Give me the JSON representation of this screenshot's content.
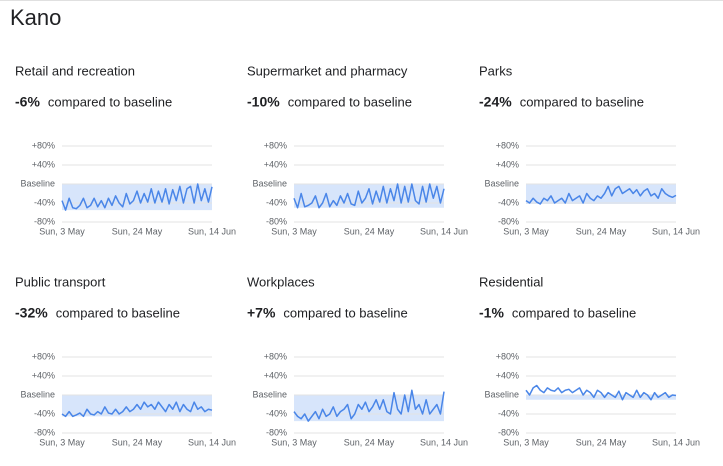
{
  "page_title": "Kano",
  "chart_data": [
    {
      "type": "line",
      "title": "Retail and recreation",
      "summary_value": -6,
      "summary_label": "-6%",
      "summary_text": "compared to baseline",
      "color": "#4a86e8",
      "grid": true,
      "ylim": [
        -80,
        80
      ],
      "yticks": [
        {
          "value": 80,
          "label": "+80%"
        },
        {
          "value": 40,
          "label": "+40%"
        },
        {
          "value": 0,
          "label": "Baseline"
        },
        {
          "value": -40,
          "label": "-40%"
        },
        {
          "value": -80,
          "label": "-80%"
        }
      ],
      "categories": [
        "Sun, 3 May",
        null,
        null,
        null,
        null,
        null,
        null,
        null,
        null,
        null,
        null,
        null,
        null,
        null,
        null,
        null,
        null,
        null,
        null,
        null,
        null,
        "Sun, 24 May",
        null,
        null,
        null,
        null,
        null,
        null,
        null,
        null,
        null,
        null,
        null,
        null,
        null,
        null,
        null,
        null,
        null,
        null,
        null,
        null,
        "Sun, 14 Jun"
      ],
      "values": [
        -35,
        -55,
        -30,
        -50,
        -52,
        -45,
        -30,
        -50,
        -45,
        -30,
        -48,
        -35,
        -50,
        -30,
        -45,
        -25,
        -40,
        -48,
        -20,
        -42,
        -35,
        -15,
        -40,
        -20,
        -38,
        -10,
        -40,
        -15,
        -38,
        -10,
        -42,
        -12,
        -35,
        -5,
        -40,
        -10,
        -5,
        -40,
        0,
        -35,
        -10,
        -38,
        -6
      ]
    },
    {
      "type": "line",
      "title": "Supermarket and pharmacy",
      "summary_value": -10,
      "summary_label": "-10%",
      "summary_text": "compared to baseline",
      "color": "#4a86e8",
      "grid": true,
      "ylim": [
        -80,
        80
      ],
      "yticks": [
        {
          "value": 80,
          "label": "+80%"
        },
        {
          "value": 40,
          "label": "+40%"
        },
        {
          "value": 0,
          "label": "Baseline"
        },
        {
          "value": -40,
          "label": "-40%"
        },
        {
          "value": -80,
          "label": "-80%"
        }
      ],
      "categories": [
        "Sun, 3 May",
        null,
        null,
        null,
        null,
        null,
        null,
        null,
        null,
        null,
        null,
        null,
        null,
        null,
        null,
        null,
        null,
        null,
        null,
        null,
        null,
        "Sun, 24 May",
        null,
        null,
        null,
        null,
        null,
        null,
        null,
        null,
        null,
        null,
        null,
        null,
        null,
        null,
        null,
        null,
        null,
        null,
        null,
        null,
        "Sun, 14 Jun"
      ],
      "values": [
        -30,
        -50,
        -20,
        -48,
        -45,
        -40,
        -25,
        -50,
        -40,
        -20,
        -48,
        -35,
        -45,
        -25,
        -40,
        -20,
        -42,
        -45,
        -15,
        -40,
        -30,
        -10,
        -42,
        -15,
        -38,
        -5,
        -40,
        -10,
        -35,
        0,
        -40,
        -5,
        -38,
        0,
        -35,
        -42,
        -5,
        -38,
        0,
        -30,
        -5,
        -40,
        -10
      ]
    },
    {
      "type": "line",
      "title": "Parks",
      "summary_value": -24,
      "summary_label": "-24%",
      "summary_text": "compared to baseline",
      "color": "#4a86e8",
      "grid": true,
      "ylim": [
        -80,
        80
      ],
      "yticks": [
        {
          "value": 80,
          "label": "+80%"
        },
        {
          "value": 40,
          "label": "+40%"
        },
        {
          "value": 0,
          "label": "Baseline"
        },
        {
          "value": -40,
          "label": "-40%"
        },
        {
          "value": -80,
          "label": "-80%"
        }
      ],
      "categories": [
        "Sun, 3 May",
        null,
        null,
        null,
        null,
        null,
        null,
        null,
        null,
        null,
        null,
        null,
        null,
        null,
        null,
        null,
        null,
        null,
        null,
        null,
        null,
        "Sun, 24 May",
        null,
        null,
        null,
        null,
        null,
        null,
        null,
        null,
        null,
        null,
        null,
        null,
        null,
        null,
        null,
        null,
        null,
        null,
        null,
        null,
        "Sun, 14 Jun"
      ],
      "values": [
        -35,
        -40,
        -30,
        -38,
        -42,
        -30,
        -35,
        -25,
        -40,
        -35,
        -30,
        -40,
        -20,
        -35,
        -30,
        -25,
        -40,
        -20,
        -30,
        -35,
        -25,
        -30,
        -20,
        -5,
        -25,
        -10,
        -5,
        -20,
        -15,
        -10,
        -20,
        -12,
        -25,
        -15,
        -10,
        -25,
        -20,
        -30,
        -10,
        -20,
        -25,
        -28,
        -24
      ]
    },
    {
      "type": "line",
      "title": "Public transport",
      "summary_value": -32,
      "summary_label": "-32%",
      "summary_text": "compared to baseline",
      "color": "#4a86e8",
      "grid": true,
      "ylim": [
        -80,
        80
      ],
      "yticks": [
        {
          "value": 80,
          "label": "+80%"
        },
        {
          "value": 40,
          "label": "+40%"
        },
        {
          "value": 0,
          "label": "Baseline"
        },
        {
          "value": -40,
          "label": "-40%"
        },
        {
          "value": -80,
          "label": "-80%"
        }
      ],
      "categories": [
        "Sun, 3 May",
        null,
        null,
        null,
        null,
        null,
        null,
        null,
        null,
        null,
        null,
        null,
        null,
        null,
        null,
        null,
        null,
        null,
        null,
        null,
        null,
        "Sun, 24 May",
        null,
        null,
        null,
        null,
        null,
        null,
        null,
        null,
        null,
        null,
        null,
        null,
        null,
        null,
        null,
        null,
        null,
        null,
        null,
        null,
        "Sun, 14 Jun"
      ],
      "values": [
        -40,
        -45,
        -35,
        -45,
        -42,
        -38,
        -45,
        -30,
        -40,
        -42,
        -35,
        -40,
        -25,
        -38,
        -40,
        -30,
        -40,
        -35,
        -25,
        -35,
        -30,
        -20,
        -30,
        -15,
        -25,
        -20,
        -30,
        -15,
        -25,
        -35,
        -20,
        -30,
        -15,
        -35,
        -20,
        -30,
        -35,
        -15,
        -30,
        -25,
        -35,
        -30,
        -32
      ]
    },
    {
      "type": "line",
      "title": "Workplaces",
      "summary_value": 7,
      "summary_label": "+7%",
      "summary_text": "compared to baseline",
      "color": "#4a86e8",
      "grid": true,
      "ylim": [
        -80,
        80
      ],
      "yticks": [
        {
          "value": 80,
          "label": "+80%"
        },
        {
          "value": 40,
          "label": "+40%"
        },
        {
          "value": 0,
          "label": "Baseline"
        },
        {
          "value": -40,
          "label": "-40%"
        },
        {
          "value": -80,
          "label": "-80%"
        }
      ],
      "categories": [
        "Sun, 3 May",
        null,
        null,
        null,
        null,
        null,
        null,
        null,
        null,
        null,
        null,
        null,
        null,
        null,
        null,
        null,
        null,
        null,
        null,
        null,
        null,
        "Sun, 24 May",
        null,
        null,
        null,
        null,
        null,
        null,
        null,
        null,
        null,
        null,
        null,
        null,
        null,
        null,
        null,
        null,
        null,
        null,
        null,
        null,
        "Sun, 14 Jun"
      ],
      "values": [
        -35,
        -45,
        -50,
        -40,
        -55,
        -45,
        -35,
        -50,
        -30,
        -45,
        -40,
        -25,
        -45,
        -35,
        -30,
        -20,
        -50,
        -40,
        -20,
        -30,
        -15,
        -35,
        -25,
        -10,
        -30,
        -10,
        -35,
        -40,
        5,
        -30,
        -40,
        0,
        -35,
        10,
        -30,
        -20,
        -40,
        -10,
        -40,
        -30,
        -20,
        -40,
        7
      ]
    },
    {
      "type": "line",
      "title": "Residential",
      "summary_value": -1,
      "summary_label": "-1%",
      "summary_text": "compared to baseline",
      "color": "#4a86e8",
      "grid": true,
      "ylim": [
        -80,
        80
      ],
      "yticks": [
        {
          "value": 80,
          "label": "+80%"
        },
        {
          "value": 40,
          "label": "+40%"
        },
        {
          "value": 0,
          "label": "Baseline"
        },
        {
          "value": -40,
          "label": "-40%"
        },
        {
          "value": -80,
          "label": "-80%"
        }
      ],
      "categories": [
        "Sun, 3 May",
        null,
        null,
        null,
        null,
        null,
        null,
        null,
        null,
        null,
        null,
        null,
        null,
        null,
        null,
        null,
        null,
        null,
        null,
        null,
        null,
        "Sun, 24 May",
        null,
        null,
        null,
        null,
        null,
        null,
        null,
        null,
        null,
        null,
        null,
        null,
        null,
        null,
        null,
        null,
        null,
        null,
        null,
        null,
        "Sun, 14 Jun"
      ],
      "values": [
        10,
        0,
        15,
        20,
        10,
        5,
        15,
        10,
        8,
        15,
        5,
        10,
        12,
        5,
        10,
        15,
        0,
        10,
        5,
        -5,
        10,
        5,
        -5,
        5,
        0,
        -5,
        8,
        -10,
        5,
        0,
        -5,
        10,
        -5,
        5,
        0,
        -10,
        5,
        -5,
        0,
        5,
        -5,
        0,
        -1
      ]
    }
  ]
}
